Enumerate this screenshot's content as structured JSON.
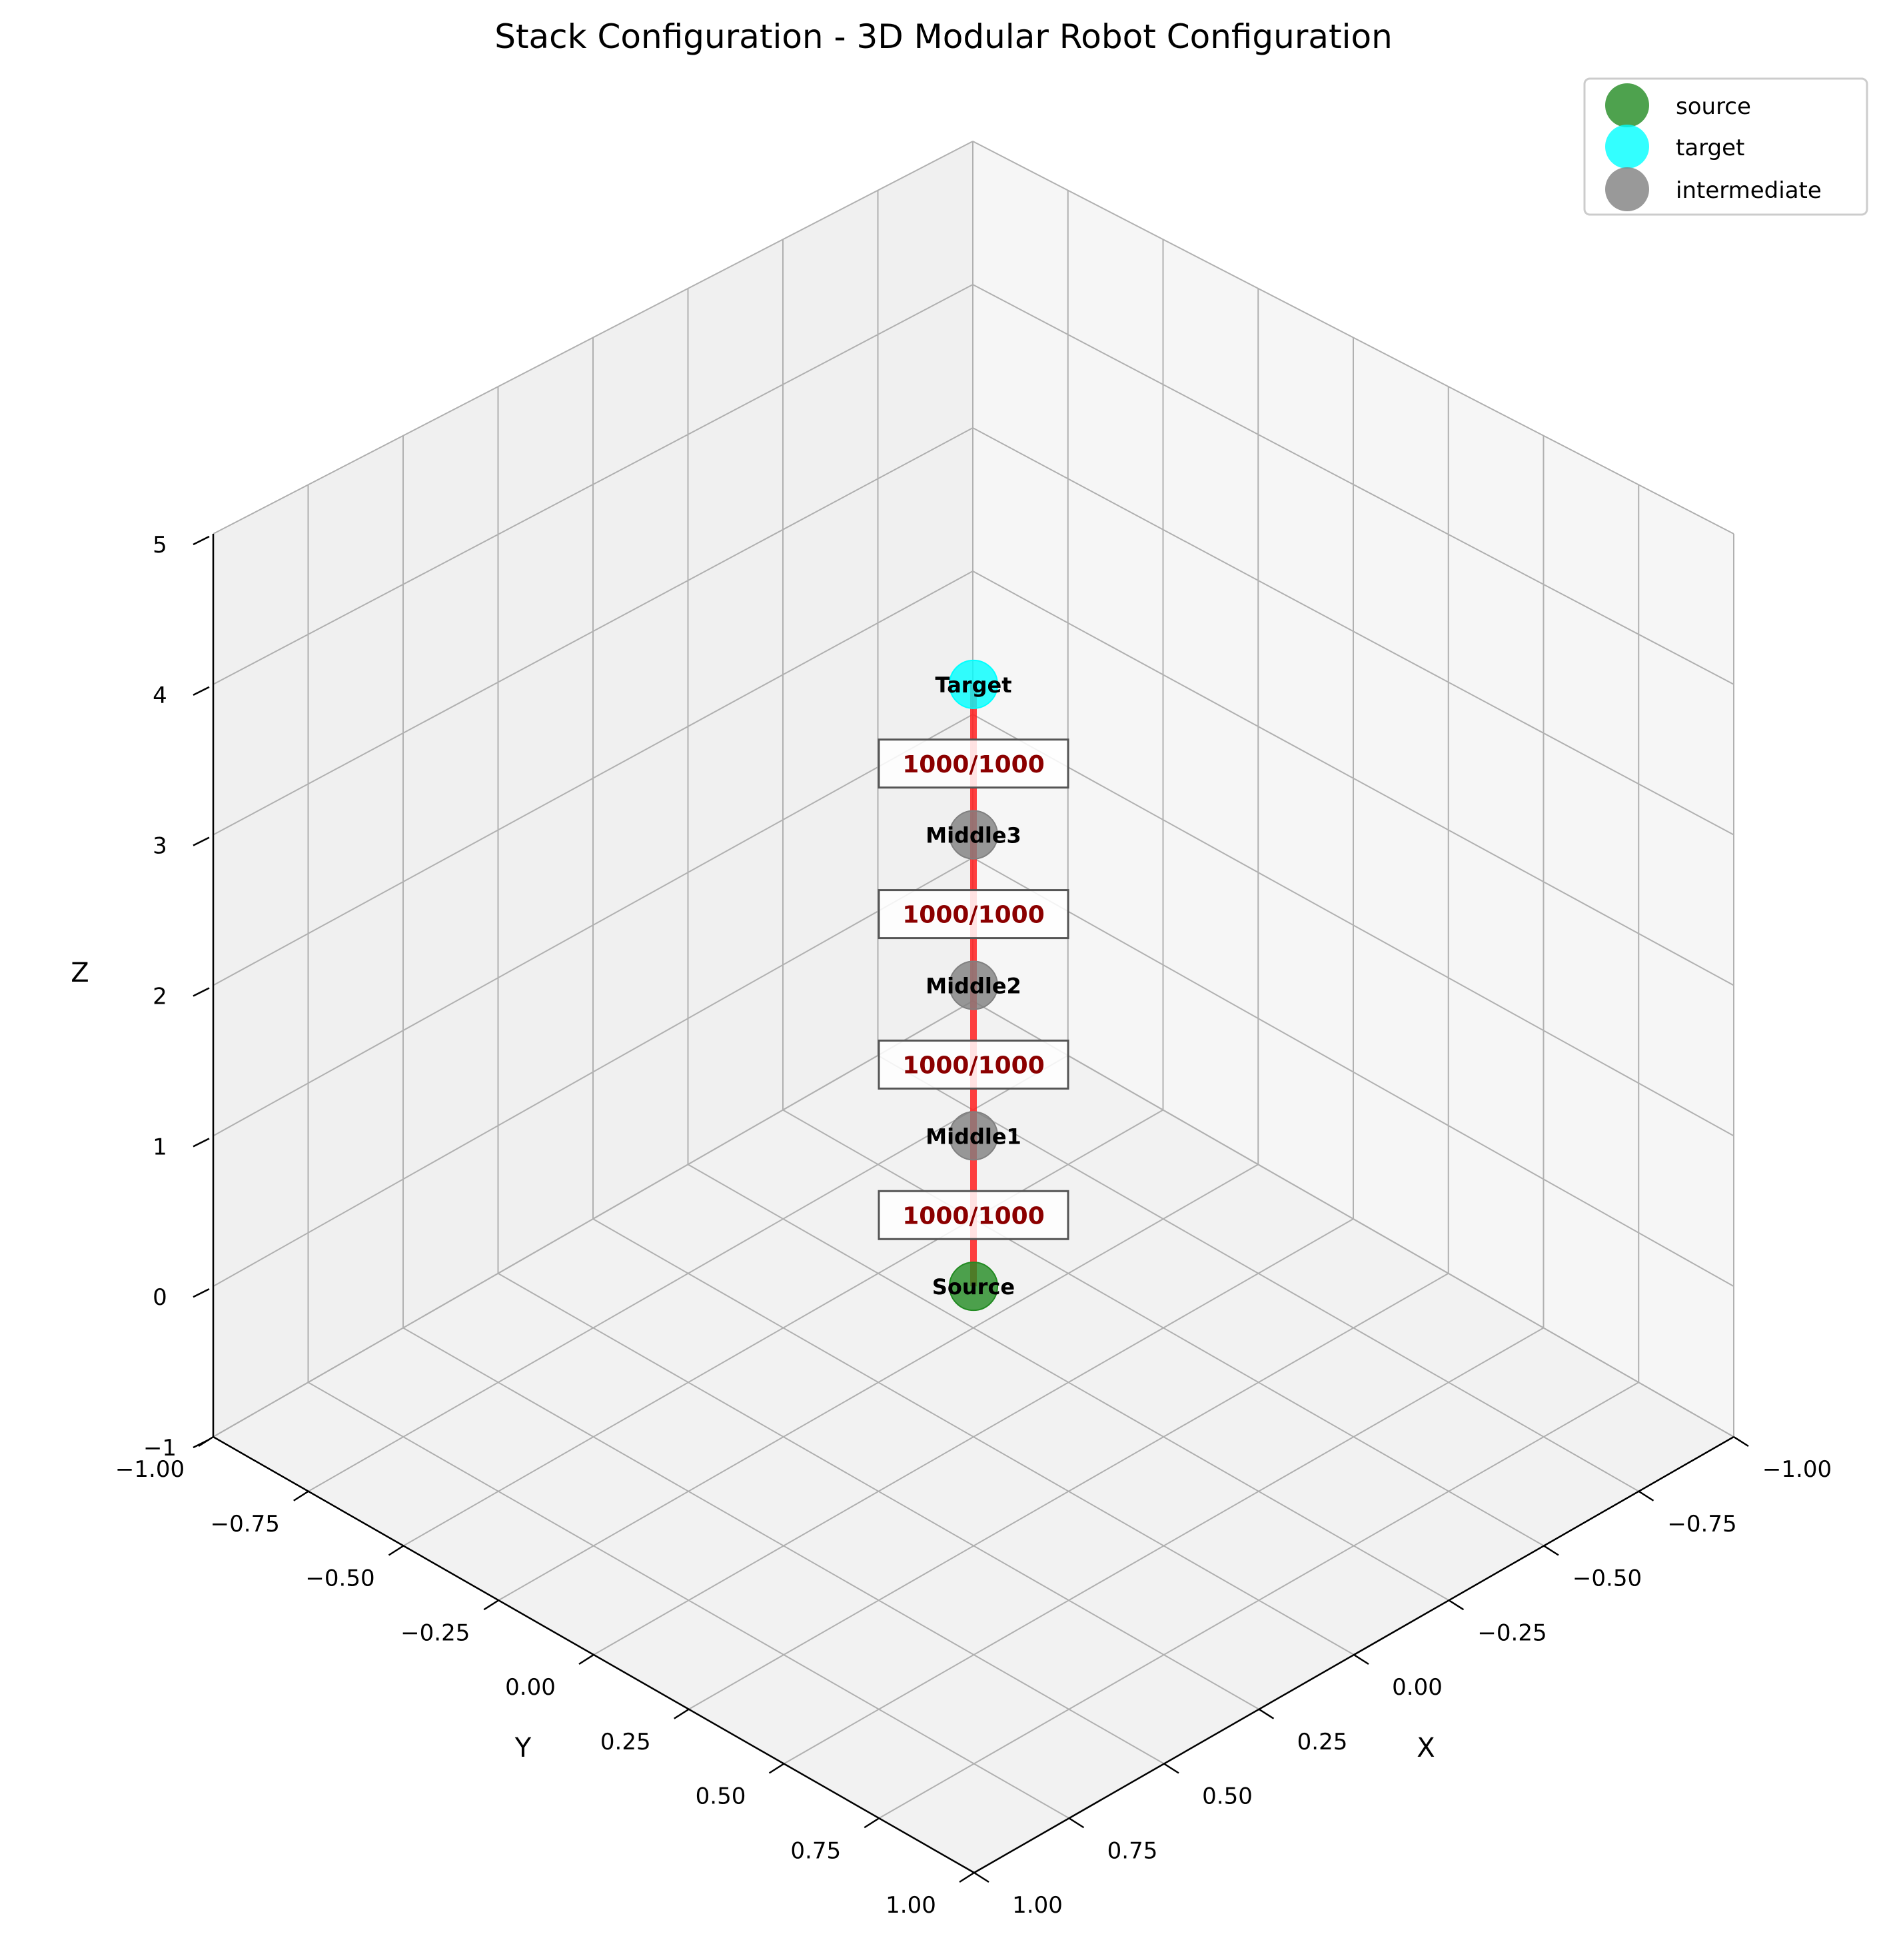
{
  "chart_data": {
    "type": "scatter",
    "projection": "3d",
    "title": "Stack Configuration - 3D Modular Robot Configuration",
    "xlabel": "X",
    "ylabel": "Y",
    "zlabel": "Z",
    "xlim": [
      -1.0,
      1.0
    ],
    "ylim": [
      -1.0,
      1.0
    ],
    "zlim": [
      -1,
      5
    ],
    "x_ticks": [
      "−1.00",
      "−0.75",
      "−0.50",
      "−0.25",
      "0.00",
      "0.25",
      "0.50",
      "0.75",
      "1.00"
    ],
    "y_ticks": [
      "−1.00",
      "−0.75",
      "−0.50",
      "−0.25",
      "0.00",
      "0.25",
      "0.50",
      "0.75",
      "1.00"
    ],
    "z_ticks": [
      "−1",
      "0",
      "1",
      "2",
      "3",
      "4",
      "5"
    ],
    "grid": true,
    "legend_position": "top-right",
    "legend": [
      {
        "label": "source",
        "color": "#228b22"
      },
      {
        "label": "target",
        "color": "#00ffff"
      },
      {
        "label": "intermediate",
        "color": "#808080"
      }
    ],
    "nodes": [
      {
        "label": "Source",
        "x": 0,
        "y": 0,
        "z": 0,
        "role": "source",
        "color": "#228b22"
      },
      {
        "label": "Middle1",
        "x": 0,
        "y": 0,
        "z": 1,
        "role": "intermediate",
        "color": "#808080"
      },
      {
        "label": "Middle2",
        "x": 0,
        "y": 0,
        "z": 2,
        "role": "intermediate",
        "color": "#808080"
      },
      {
        "label": "Middle3",
        "x": 0,
        "y": 0,
        "z": 3,
        "role": "intermediate",
        "color": "#808080"
      },
      {
        "label": "Target",
        "x": 0,
        "y": 0,
        "z": 4,
        "role": "target",
        "color": "#00ffff"
      }
    ],
    "edges": [
      {
        "from": 0,
        "to": 1,
        "label": "1000/1000"
      },
      {
        "from": 1,
        "to": 2,
        "label": "1000/1000"
      },
      {
        "from": 2,
        "to": 3,
        "label": "1000/1000"
      },
      {
        "from": 3,
        "to": 4,
        "label": "1000/1000"
      }
    ],
    "edge_color": "#ff2020",
    "edge_label_color": "#8b0000"
  }
}
